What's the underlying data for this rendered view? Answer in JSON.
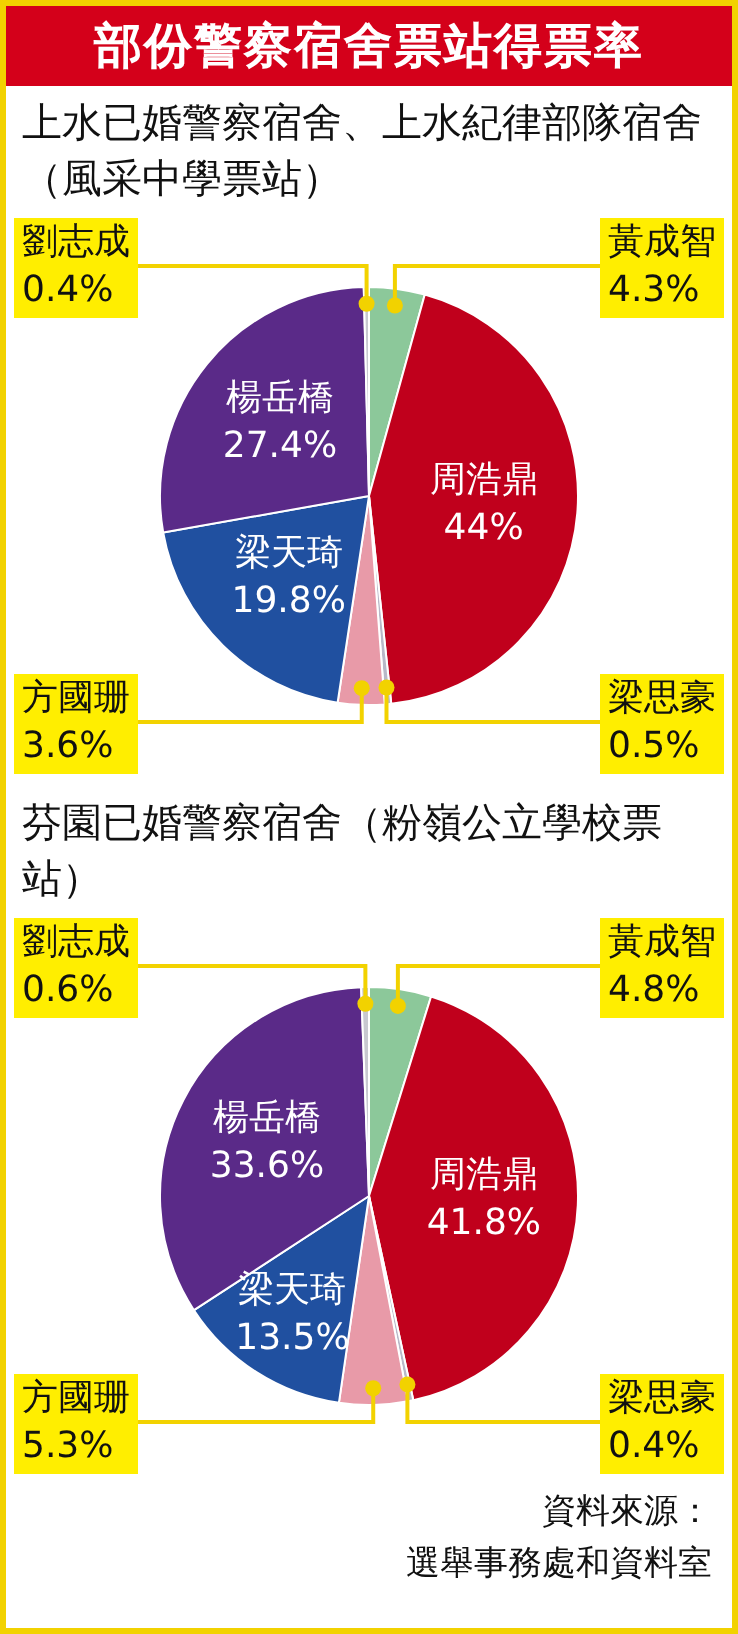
{
  "chart_data": [
    {
      "type": "pie",
      "title": "部份警察宿舍票站得票率",
      "subtitle": "上水已婚警察宿舍、上水紀律部隊宿舍（風采中學票站）",
      "categories": [
        "黃成智",
        "周浩鼎",
        "梁思豪",
        "方國珊",
        "梁天琦",
        "楊岳橋",
        "劉志成"
      ],
      "values": [
        4.3,
        44,
        0.5,
        3.6,
        19.8,
        27.4,
        0.4
      ],
      "value_labels": [
        "4.3%",
        "44%",
        "0.5%",
        "3.6%",
        "19.8%",
        "27.4%",
        "0.4%"
      ],
      "colors": [
        "#8cc89a",
        "#c0001c",
        "#b8b8c8",
        "#e89aa8",
        "#2050a0",
        "#5a2a88",
        "#c8c8d0"
      ],
      "data_labels": true,
      "legend": false
    },
    {
      "type": "pie",
      "title": "芬園已婚警察宿舍（粉嶺公立學校票站）",
      "categories": [
        "黃成智",
        "周浩鼎",
        "梁思豪",
        "方國珊",
        "梁天琦",
        "楊岳橋",
        "劉志成"
      ],
      "values": [
        4.8,
        41.8,
        0.4,
        5.3,
        13.5,
        33.6,
        0.6
      ],
      "value_labels": [
        "4.8%",
        "41.8%",
        "0.4%",
        "5.3%",
        "13.5%",
        "33.6%",
        "0.6%"
      ],
      "colors": [
        "#8cc89a",
        "#c0001c",
        "#b8b8c8",
        "#e89aa8",
        "#2050a0",
        "#5a2a88",
        "#c8c8d0"
      ],
      "data_labels": true,
      "legend": false,
      "annotations": [
        "資料來源：",
        "選舉事務處和資料室"
      ]
    }
  ]
}
